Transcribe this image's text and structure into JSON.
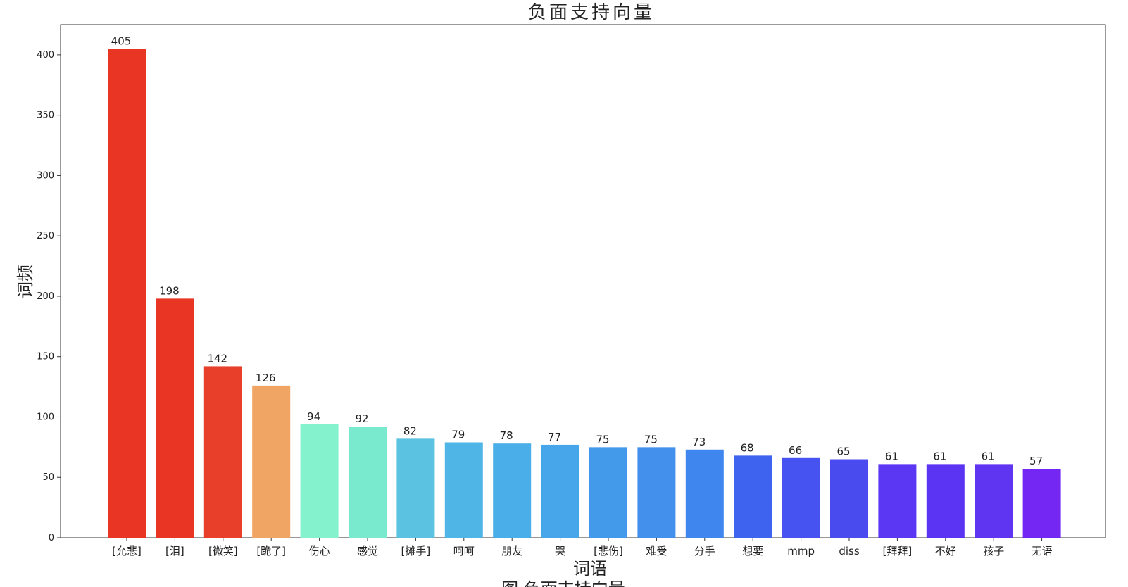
{
  "chart_data": {
    "type": "bar",
    "title": "负面支持向量",
    "xlabel": "词语",
    "ylabel": "词频",
    "ylim": [
      0,
      425
    ],
    "yticks": [
      0,
      50,
      100,
      150,
      200,
      250,
      300,
      350,
      400
    ],
    "grid": false,
    "legend": "none",
    "categories": [
      "[允悲]",
      "[泪]",
      "[微笑]",
      "[跪了]",
      "伤心",
      "感觉",
      "[摊手]",
      "呵呵",
      "朋友",
      "哭",
      "[悲伤]",
      "难受",
      "分手",
      "想要",
      "mmp",
      "diss",
      "[拜拜]",
      "不好",
      "孩子",
      "无语"
    ],
    "values": [
      405,
      198,
      142,
      126,
      94,
      92,
      82,
      79,
      78,
      77,
      75,
      75,
      73,
      68,
      66,
      65,
      61,
      61,
      61,
      57
    ],
    "colors": [
      "#e83524",
      "#e83524",
      "#e83f2b",
      "#f0a564",
      "#84f2cd",
      "#7aeacf",
      "#5bc3e1",
      "#4eb5e6",
      "#4aaee8",
      "#47a5ea",
      "#4399ea",
      "#428fec",
      "#3f86ee",
      "#3e63ee",
      "#4653f0",
      "#4a4bef",
      "#5b36f3",
      "#5a33f3",
      "#5f35f1",
      "#7427f2"
    ]
  },
  "caption": "图 负面支持向量"
}
